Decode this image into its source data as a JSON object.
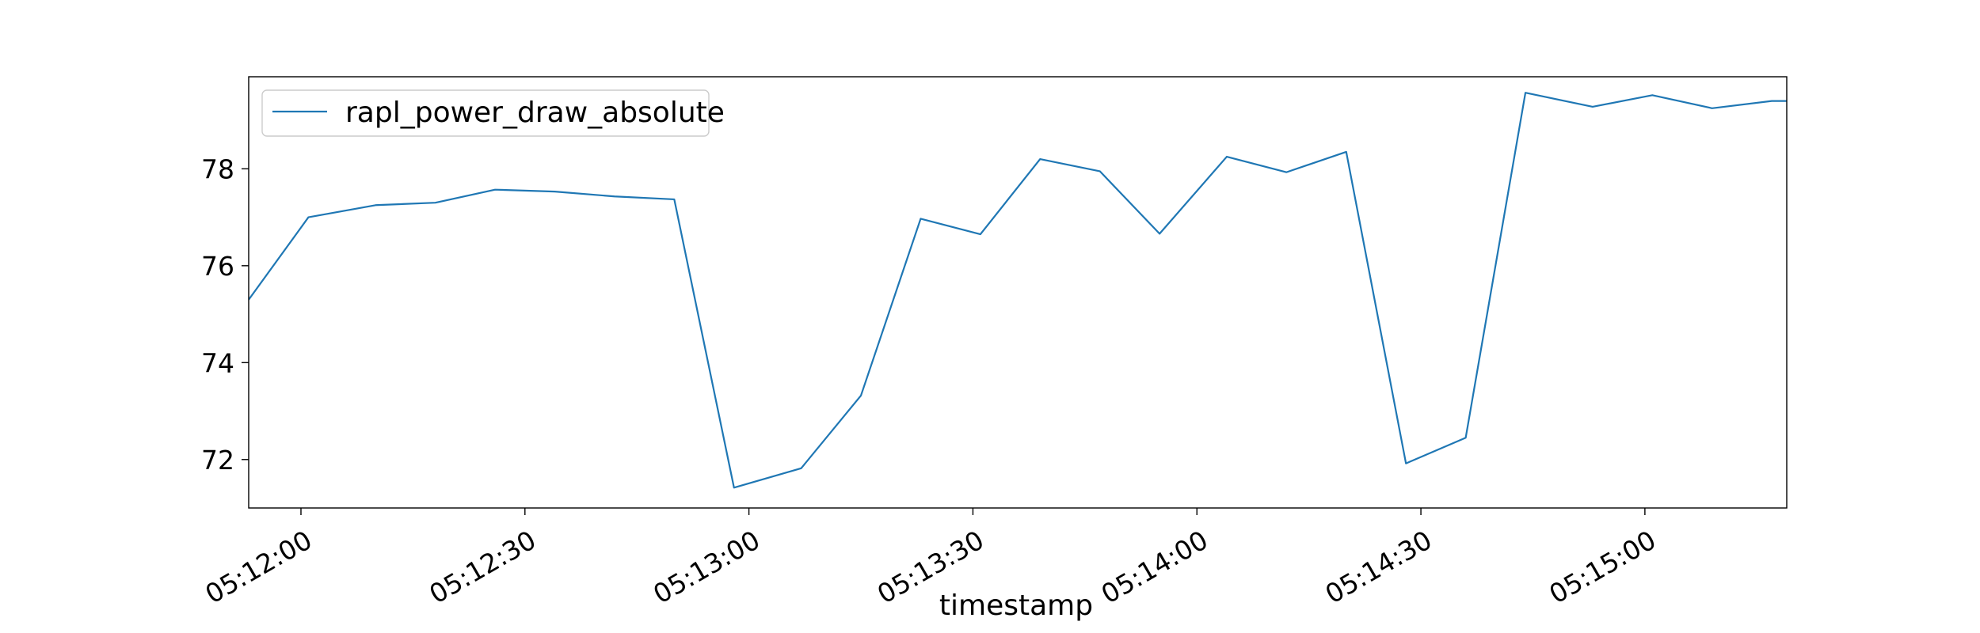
{
  "chart_data": {
    "type": "line",
    "title": "",
    "xlabel": "timestamp",
    "ylabel": "",
    "x": [
      "05:11:53",
      "05:12:01",
      "05:12:10",
      "05:12:18",
      "05:12:26",
      "05:12:34",
      "05:12:42",
      "05:12:50",
      "05:12:58",
      "05:13:07",
      "05:13:15",
      "05:13:23",
      "05:13:31",
      "05:13:39",
      "05:13:47",
      "05:13:55",
      "05:14:04",
      "05:14:12",
      "05:14:20",
      "05:14:28",
      "05:14:36",
      "05:14:44",
      "05:14:53",
      "05:15:01",
      "05:15:09",
      "05:15:17",
      "05:15:25"
    ],
    "series": [
      {
        "name": "rapl_power_draw_absolute",
        "color": "#1f77b4",
        "values": [
          75.3,
          77.0,
          77.25,
          77.3,
          77.57,
          77.53,
          77.43,
          77.37,
          71.42,
          71.82,
          73.32,
          76.97,
          76.65,
          78.2,
          77.95,
          76.66,
          78.25,
          77.93,
          78.35,
          71.92,
          72.45,
          79.57,
          79.28,
          79.52,
          79.25,
          79.4,
          79.4
        ]
      }
    ],
    "xlim": [
      "05:11:53",
      "05:15:19"
    ],
    "ylim": [
      71.0,
      79.9
    ],
    "xticks": [
      "05:12:00",
      "05:12:30",
      "05:13:00",
      "05:13:30",
      "05:14:00",
      "05:14:30",
      "05:15:00"
    ],
    "yticks": [
      72,
      74,
      76,
      78
    ],
    "grid": false,
    "legend": "top-left"
  }
}
